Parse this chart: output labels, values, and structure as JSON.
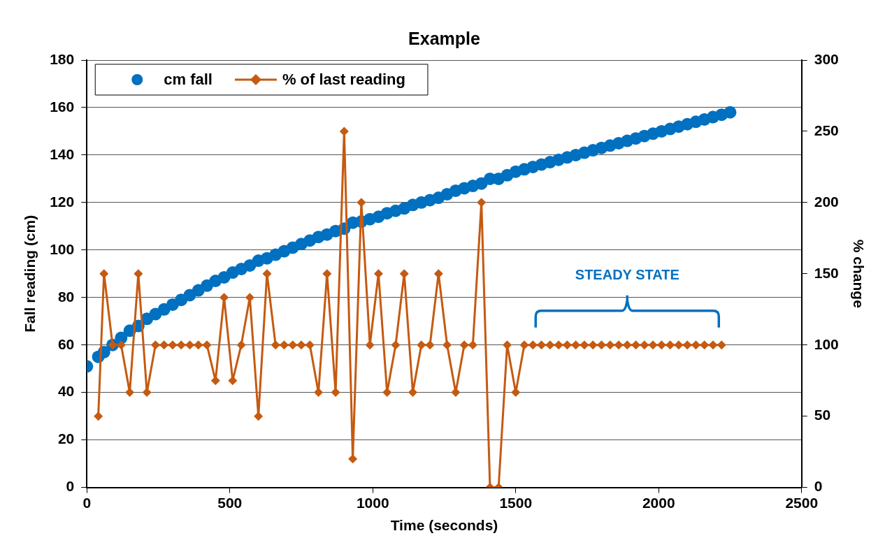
{
  "chart_data": {
    "type": "scatter",
    "title": "Example",
    "xlabel": "Time (seconds)",
    "ylabel": "Fall reading (cm)",
    "y2label": "% change",
    "xlim": [
      0,
      2500
    ],
    "xticks": [
      0,
      500,
      1000,
      1500,
      2000,
      2500
    ],
    "ylim": [
      0,
      180
    ],
    "yticks": [
      0,
      20,
      40,
      60,
      80,
      100,
      120,
      140,
      160,
      180
    ],
    "y2lim": [
      0,
      300
    ],
    "y2ticks": [
      0,
      50,
      100,
      150,
      200,
      250,
      300
    ],
    "grid": "y",
    "legend": "top left",
    "annotations": [
      "STEADY STATE"
    ],
    "series": [
      {
        "name": "cm fall",
        "marker": "circle",
        "color": "#0070c0",
        "x": [
          0,
          40,
          60,
          90,
          120,
          150,
          180,
          210,
          240,
          270,
          300,
          330,
          360,
          390,
          420,
          450,
          480,
          510,
          540,
          570,
          600,
          630,
          660,
          690,
          720,
          750,
          780,
          810,
          840,
          870,
          900,
          930,
          960,
          990,
          1020,
          1050,
          1080,
          1110,
          1140,
          1170,
          1200,
          1230,
          1260,
          1290,
          1320,
          1350,
          1380,
          1410,
          1440,
          1470,
          1500,
          1530,
          1560,
          1590,
          1620,
          1650,
          1680,
          1710,
          1740,
          1770,
          1800,
          1830,
          1860,
          1890,
          1920,
          1950,
          1980,
          2010,
          2040,
          2070,
          2100,
          2130,
          2160,
          2190,
          2220,
          2250
        ],
        "values": [
          51,
          55,
          57,
          60,
          63,
          66,
          68,
          71,
          73,
          75,
          77,
          79,
          81,
          83,
          85,
          87,
          88.5,
          90.5,
          92,
          93.5,
          95.5,
          96.5,
          98,
          99.5,
          101,
          102.5,
          104,
          105.5,
          106.5,
          108,
          109,
          111.5,
          112,
          113,
          114,
          115.5,
          116.5,
          117.5,
          119,
          120,
          121,
          122,
          123.5,
          125,
          126,
          127,
          128,
          130,
          130,
          131.5,
          133,
          134,
          135,
          136,
          137,
          138,
          139,
          140,
          141,
          142,
          143,
          144,
          145,
          146,
          147,
          148,
          149,
          150,
          151,
          152,
          153,
          154,
          155,
          156,
          157,
          158
        ]
      },
      {
        "name": "% of last reading",
        "type": "line",
        "marker": "diamond",
        "axis": "y2",
        "color": "#c55a11",
        "x": [
          40,
          60,
          90,
          120,
          150,
          180,
          210,
          240,
          270,
          300,
          330,
          360,
          390,
          420,
          450,
          480,
          510,
          540,
          570,
          600,
          630,
          660,
          690,
          720,
          750,
          780,
          810,
          840,
          870,
          900,
          930,
          960,
          990,
          1020,
          1050,
          1080,
          1110,
          1140,
          1170,
          1200,
          1230,
          1260,
          1290,
          1320,
          1350,
          1380,
          1410,
          1440,
          1470,
          1500,
          1530,
          1560,
          1590,
          1620,
          1650,
          1680,
          1710,
          1740,
          1770,
          1800,
          1830,
          1860,
          1890,
          1920,
          1950,
          1980,
          2010,
          2040,
          2070,
          2100,
          2130,
          2160,
          2190,
          2220
        ],
        "values": [
          50,
          150,
          100,
          100,
          66.7,
          150,
          66.7,
          100,
          100,
          100,
          100,
          100,
          100,
          100,
          75,
          133.3,
          75,
          100,
          133.3,
          50,
          150,
          100,
          100,
          100,
          100,
          100,
          66.7,
          150,
          66.7,
          250,
          20,
          200,
          100,
          150,
          66.7,
          100,
          150,
          66.7,
          100,
          100,
          150,
          100,
          66.7,
          100,
          100,
          200,
          0,
          0,
          100,
          66.7,
          100,
          100,
          100,
          100,
          100,
          100,
          100,
          100,
          100,
          100,
          100,
          100,
          100,
          100,
          100,
          100,
          100,
          100,
          100,
          100,
          100,
          100,
          100,
          100
        ]
      }
    ]
  }
}
